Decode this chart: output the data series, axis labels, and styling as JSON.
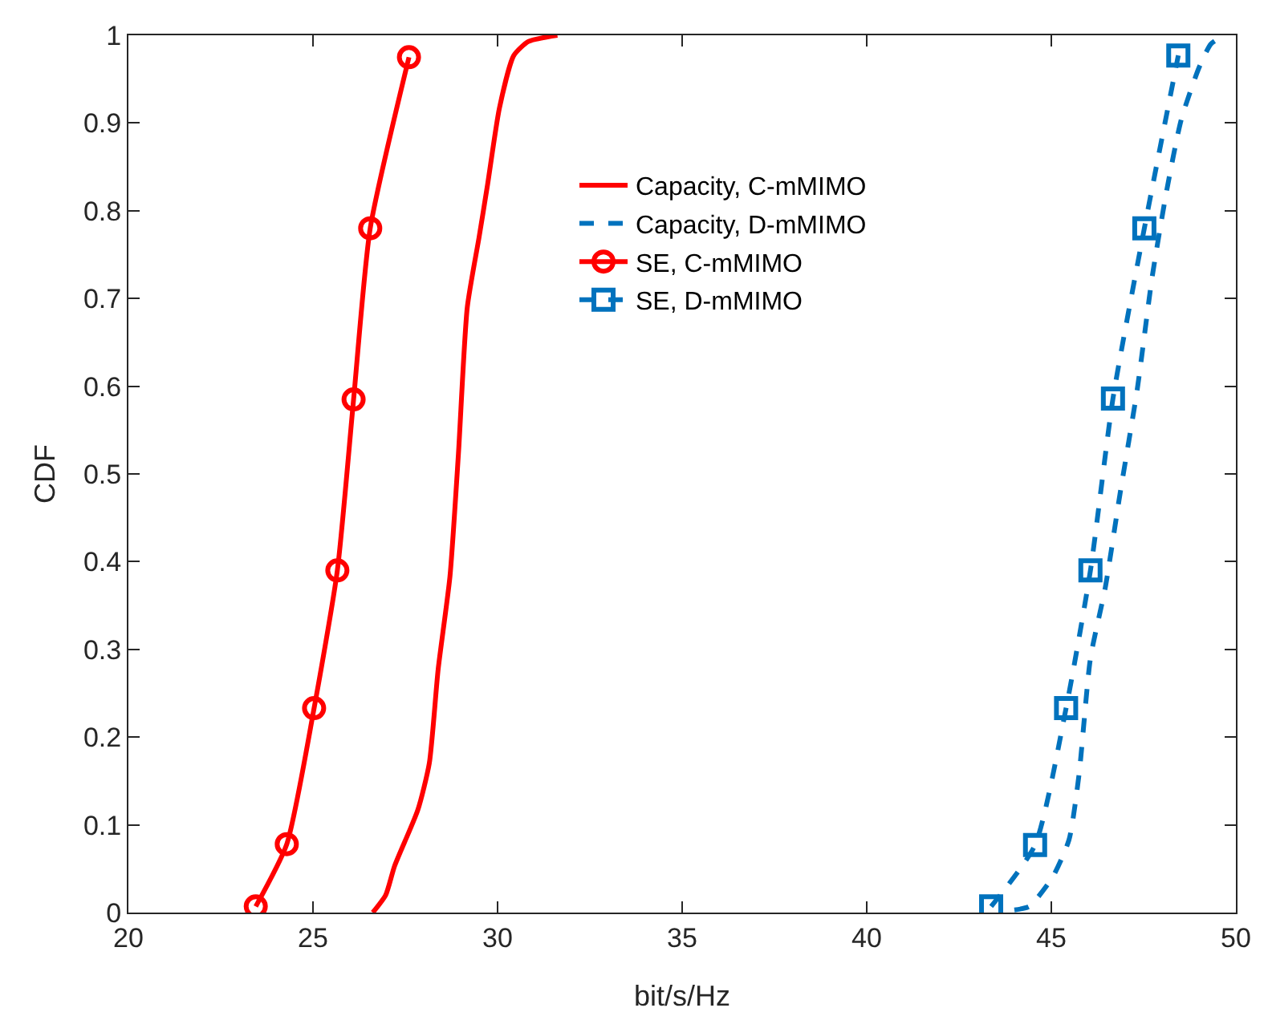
{
  "chart_data": {
    "type": "line",
    "xlabel": "bit/s/Hz",
    "ylabel": "CDF",
    "xlim": [
      20,
      50
    ],
    "xticks": [
      20,
      25,
      30,
      35,
      40,
      45,
      50
    ],
    "ylim": [
      0,
      1
    ],
    "yticks": [
      0,
      0.1,
      0.2,
      0.3,
      0.4,
      0.5,
      0.6,
      0.7,
      0.8,
      0.9,
      1
    ],
    "grid": false,
    "legend": "top right",
    "series": [
      {
        "name": "Capacity, C-mMIMO",
        "color": "#ff0000",
        "line_style": "solid",
        "marker": "none",
        "x": [
          26.62,
          26.97,
          27.21,
          27.84,
          28.15,
          28.39,
          28.71,
          28.94,
          29.18,
          29.5,
          29.73,
          30.05,
          30.44,
          30.84,
          31.62
        ],
        "values": [
          0,
          0.02,
          0.053,
          0.117,
          0.17,
          0.277,
          0.383,
          0.523,
          0.69,
          0.77,
          0.83,
          0.917,
          0.977,
          0.993,
          1
        ]
      },
      {
        "name": "Capacity, D-mMIMO",
        "color": "#0072bd",
        "line_style": "dashed",
        "marker": "none",
        "x": [
          44.0,
          44.4,
          45.03,
          45.48,
          45.75,
          46.06,
          46.46,
          46.86,
          47.33,
          47.73,
          48.13,
          48.52,
          49.0,
          49.32,
          49.56
        ],
        "values": [
          0.003,
          0.007,
          0.04,
          0.083,
          0.157,
          0.29,
          0.37,
          0.477,
          0.597,
          0.724,
          0.824,
          0.904,
          0.963,
          0.99,
          0.997
        ]
      },
      {
        "name": "SE, C-mMIMO",
        "color": "#ff0000",
        "line_style": "solid",
        "marker": "circle",
        "x": [
          23.45,
          24.29,
          25.03,
          25.66,
          26.1,
          26.55,
          27.6
        ],
        "values": [
          0.007,
          0.078,
          0.233,
          0.39,
          0.585,
          0.78,
          0.975
        ]
      },
      {
        "name": "SE, D-mMIMO",
        "color": "#0072bd",
        "line_style": "dashed",
        "marker": "square",
        "x": [
          43.37,
          44.56,
          45.4,
          46.06,
          46.67,
          47.52,
          48.44
        ],
        "values": [
          0.007,
          0.077,
          0.233,
          0.39,
          0.586,
          0.78,
          0.977
        ]
      }
    ]
  }
}
